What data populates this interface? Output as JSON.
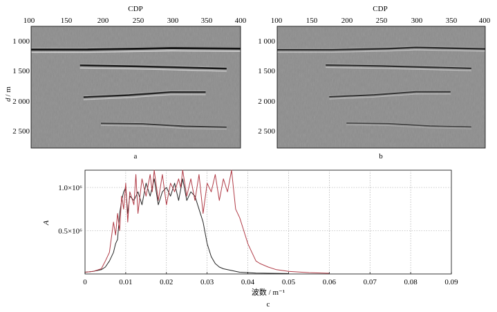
{
  "chart_data": [
    {
      "type": "heatmap",
      "panel_label": "a",
      "xlabel": "CDP",
      "ylabel": "d / m",
      "ylabel_prefix": "d",
      "ylabel_unit": "/ m",
      "x_ticks": [
        "100",
        "150",
        "200",
        "250",
        "300",
        "350",
        "400"
      ],
      "y_ticks": [
        "1 000",
        "1 500",
        "2 000",
        "2 500"
      ],
      "xlim": [
        100,
        400
      ],
      "ylim": [
        2750,
        680
      ],
      "reflectors": [
        {
          "points": [
            [
              100,
              1075
            ],
            [
              180,
              1075
            ],
            [
              260,
              1060
            ],
            [
              300,
              1050
            ],
            [
              400,
              1060
            ]
          ],
          "strength": 1.0
        },
        {
          "points": [
            [
              170,
              1345
            ],
            [
              250,
              1360
            ],
            [
              330,
              1385
            ],
            [
              380,
              1400
            ]
          ],
          "strength": 0.9
        },
        {
          "points": [
            [
              175,
              1885
            ],
            [
              240,
              1850
            ],
            [
              300,
              1800
            ],
            [
              350,
              1800
            ]
          ],
          "strength": 0.8
        },
        {
          "points": [
            [
              200,
              2330
            ],
            [
              260,
              2340
            ],
            [
              320,
              2380
            ],
            [
              380,
              2395
            ]
          ],
          "strength": 0.55
        }
      ]
    },
    {
      "type": "heatmap",
      "panel_label": "b",
      "xlabel": "CDP",
      "x_ticks": [
        "100",
        "150",
        "200",
        "250",
        "300",
        "350",
        "400"
      ],
      "y_ticks": [
        "1 000",
        "1 500",
        "2 000",
        "2 500"
      ],
      "xlim": [
        100,
        400
      ],
      "ylim": [
        2750,
        680
      ],
      "reflectors": [
        {
          "points": [
            [
              100,
              1080
            ],
            [
              180,
              1080
            ],
            [
              260,
              1060
            ],
            [
              300,
              1040
            ],
            [
              400,
              1065
            ]
          ],
          "strength": 0.75
        },
        {
          "points": [
            [
              170,
              1340
            ],
            [
              250,
              1355
            ],
            [
              330,
              1380
            ],
            [
              380,
              1395
            ]
          ],
          "strength": 0.7
        },
        {
          "points": [
            [
              175,
              1880
            ],
            [
              240,
              1845
            ],
            [
              300,
              1795
            ],
            [
              350,
              1795
            ]
          ],
          "strength": 0.6
        },
        {
          "points": [
            [
              200,
              2325
            ],
            [
              260,
              2335
            ],
            [
              320,
              2375
            ],
            [
              380,
              2390
            ]
          ],
          "strength": 0.4
        }
      ]
    },
    {
      "type": "line",
      "panel_label": "c",
      "xlabel": "波数 / m⁻¹",
      "ylabel": "A",
      "xlim": [
        0,
        0.09
      ],
      "ylim": [
        0,
        1200000
      ],
      "x_ticks": [
        "0",
        "0.01",
        "0.02",
        "0.03",
        "0.04",
        "0.05",
        "0.06",
        "0.07",
        "0.08",
        "0.09"
      ],
      "y_ticks": [
        {
          "value": 500000,
          "label": "0.5×10⁶"
        },
        {
          "value": 1000000,
          "label": "1.0×10⁶"
        }
      ],
      "grid": true,
      "series": [
        {
          "color": "#222222",
          "x": [
            0,
            0.002,
            0.004,
            0.005,
            0.006,
            0.007,
            0.0075,
            0.008,
            0.0085,
            0.009,
            0.0095,
            0.01,
            0.0105,
            0.011,
            0.012,
            0.013,
            0.014,
            0.015,
            0.016,
            0.017,
            0.018,
            0.019,
            0.02,
            0.021,
            0.022,
            0.023,
            0.024,
            0.025,
            0.026,
            0.027,
            0.028,
            0.029,
            0.03,
            0.031,
            0.032,
            0.033,
            0.034,
            0.035,
            0.036,
            0.037,
            0.038,
            0.04,
            0.042,
            0.045,
            0.05
          ],
          "y": [
            20000,
            30000,
            50000,
            80000,
            150000,
            250000,
            350000,
            400000,
            700000,
            850000,
            950000,
            1000000,
            700000,
            900000,
            850000,
            950000,
            800000,
            1050000,
            900000,
            1100000,
            800000,
            950000,
            1000000,
            900000,
            1050000,
            850000,
            1100000,
            850000,
            950000,
            900000,
            750000,
            600000,
            350000,
            200000,
            120000,
            80000,
            60000,
            50000,
            40000,
            30000,
            20000,
            15000,
            10000,
            8000,
            5000
          ]
        },
        {
          "color": "#b03a45",
          "x": [
            0,
            0.002,
            0.004,
            0.005,
            0.006,
            0.007,
            0.0075,
            0.008,
            0.0085,
            0.009,
            0.0095,
            0.01,
            0.0105,
            0.011,
            0.012,
            0.0125,
            0.013,
            0.014,
            0.015,
            0.016,
            0.0165,
            0.017,
            0.018,
            0.019,
            0.02,
            0.021,
            0.022,
            0.023,
            0.0235,
            0.024,
            0.025,
            0.026,
            0.027,
            0.028,
            0.029,
            0.03,
            0.031,
            0.032,
            0.033,
            0.034,
            0.035,
            0.036,
            0.037,
            0.038,
            0.039,
            0.04,
            0.041,
            0.042,
            0.043,
            0.045,
            0.047,
            0.05,
            0.055,
            0.06
          ],
          "y": [
            20000,
            30000,
            60000,
            150000,
            250000,
            600000,
            450000,
            700000,
            500000,
            900000,
            750000,
            1050000,
            600000,
            950000,
            800000,
            1150000,
            700000,
            1100000,
            900000,
            1150000,
            950000,
            1200000,
            850000,
            1150000,
            800000,
            1050000,
            950000,
            1100000,
            1000000,
            1200000,
            900000,
            1100000,
            850000,
            1150000,
            700000,
            1050000,
            950000,
            1150000,
            850000,
            1100000,
            950000,
            1200000,
            750000,
            650000,
            500000,
            350000,
            250000,
            150000,
            120000,
            80000,
            50000,
            30000,
            15000,
            8000
          ]
        }
      ]
    }
  ]
}
